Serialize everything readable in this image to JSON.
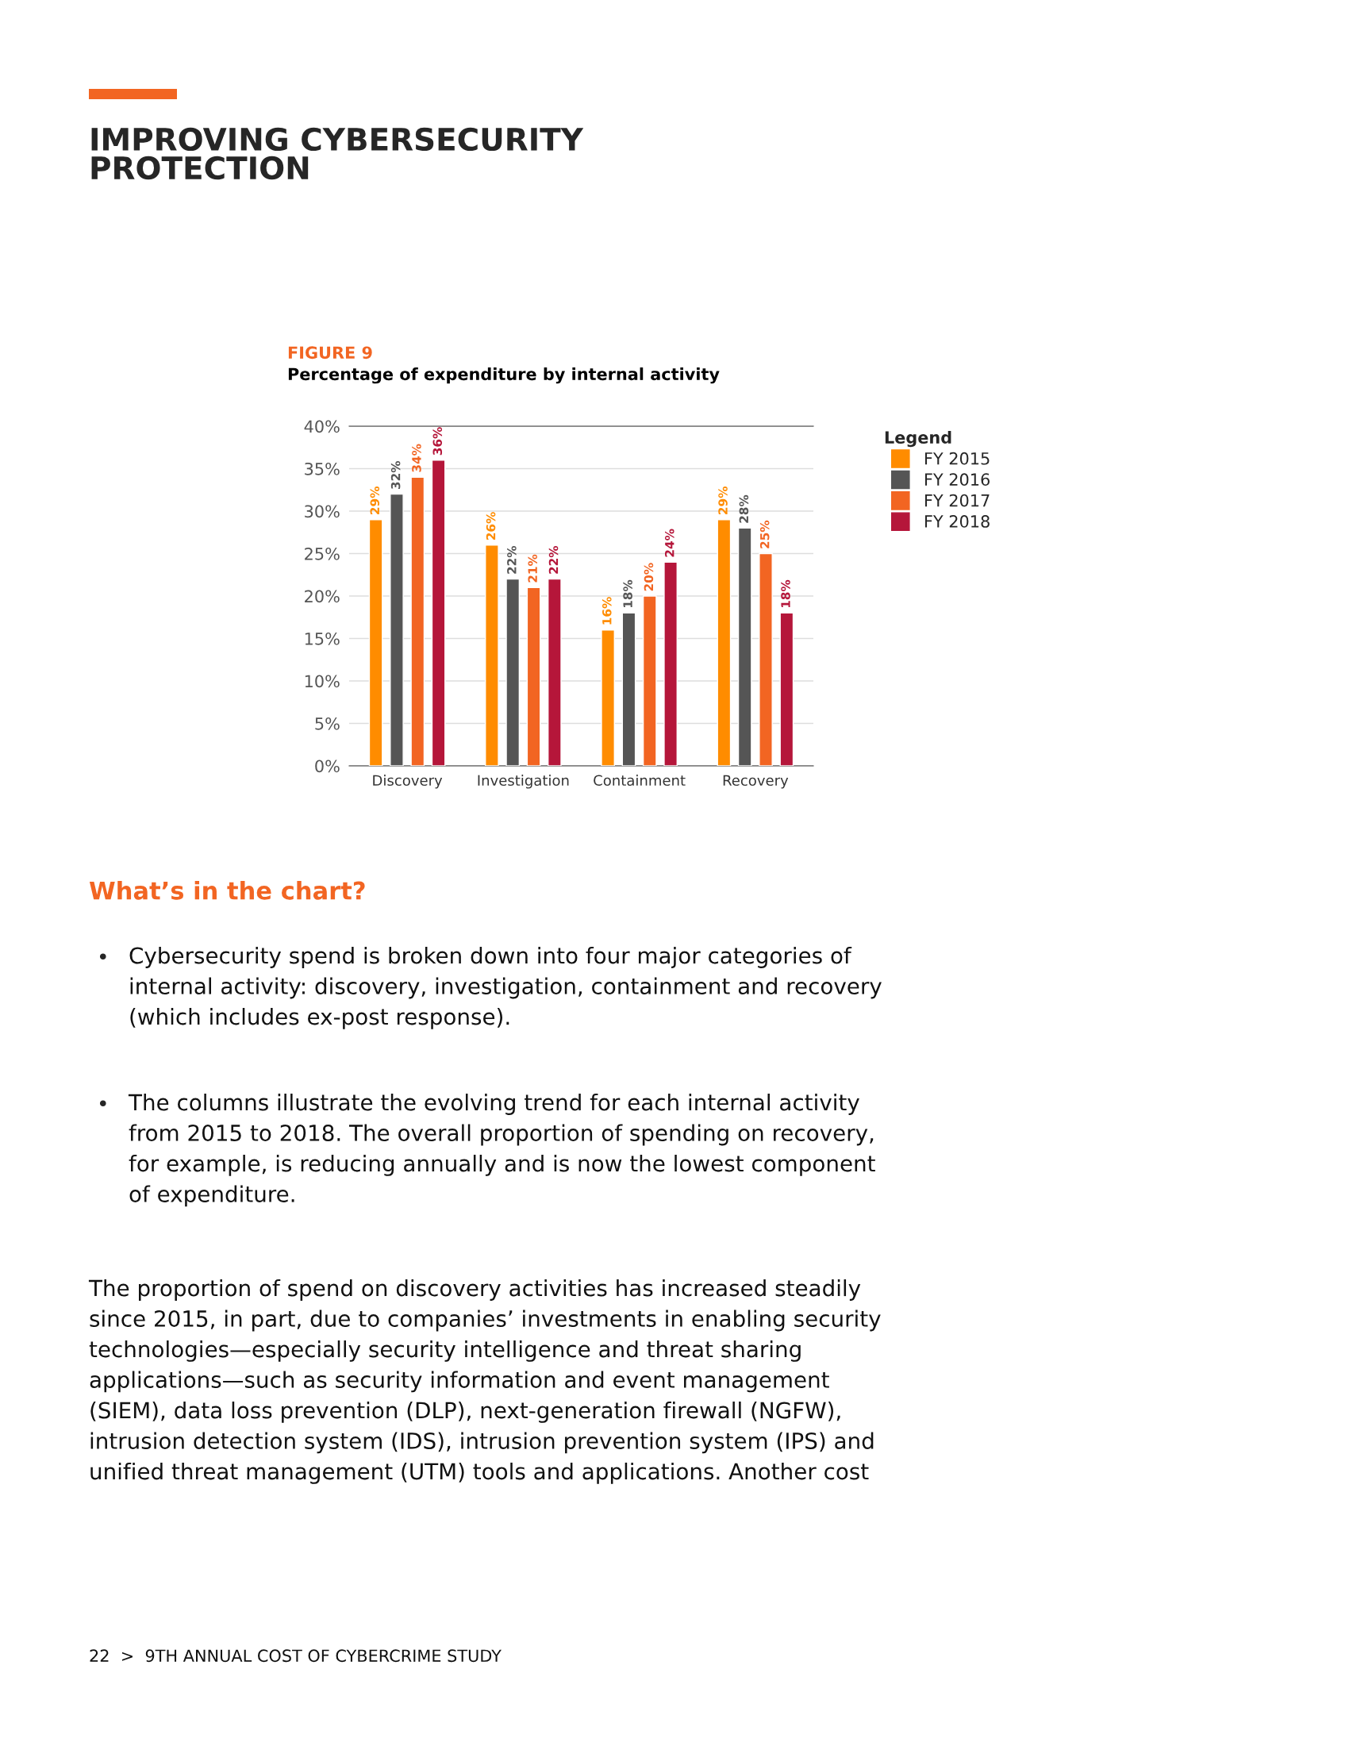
{
  "chart_data": {
    "type": "bar",
    "title": "Percentage of expenditure by internal activity",
    "subtitle": "FIGURE 9",
    "legend_title": "Legend",
    "categories": [
      "Discovery",
      "Investigation",
      "Containment",
      "Recovery"
    ],
    "series": [
      {
        "name": "FY 2015",
        "color": "#ff8c00",
        "values": [
          29,
          26,
          16,
          29
        ],
        "value_labels": [
          "29%",
          "26%",
          "16%",
          "29%"
        ]
      },
      {
        "name": "FY 2016",
        "color": "#555555",
        "values": [
          32,
          22,
          18,
          28
        ],
        "value_labels": [
          "32%",
          "22%",
          "18%",
          "28%"
        ]
      },
      {
        "name": "FY 2017",
        "color": "#f26522",
        "values": [
          34,
          21,
          20,
          25
        ],
        "value_labels": [
          "34%",
          "21%",
          "20%",
          "25%"
        ]
      },
      {
        "name": "FY 2018",
        "color": "#b5163a",
        "values": [
          36,
          22,
          24,
          18
        ],
        "value_labels": [
          "36%",
          "22%",
          "24%",
          "18%"
        ]
      }
    ],
    "ylim": [
      0,
      40
    ],
    "yticks": [
      {
        "value": 0,
        "label": "0%"
      },
      {
        "value": 5,
        "label": "5%"
      },
      {
        "value": 10,
        "label": "10%"
      },
      {
        "value": 15,
        "label": "15%"
      },
      {
        "value": 20,
        "label": "20%"
      },
      {
        "value": 25,
        "label": "25%"
      },
      {
        "value": 30,
        "label": "30%"
      },
      {
        "value": 35,
        "label": "35%"
      },
      {
        "value": 40,
        "label": "40%"
      }
    ],
    "grid": "y",
    "legend": "right",
    "annotations": [
      "IMPROVING CYBERSECURITY\nPROTECTION",
      "What’s in the chart?",
      "•",
      "Cybersecurity spend is broken down into four major categories of\ninternal activity: discovery, investigation, containment and recovery\n(which includes ex-post response).",
      "•",
      "The columns illustrate the evolving trend for each internal activity\nfrom 2015 to 2018. The overall proportion of spending on recovery,\nfor example, is reducing annually and is now the lowest component\nof expenditure.",
      "The proportion of spend on discovery activities has increased steadily\nsince 2015, in part, due to companies’ investments in enabling security\ntechnologies—especially security intelligence and threat sharing\napplications—such as security information and event management\n(SIEM), data loss prevention (DLP), next-generation firewall (NGFW),\nintrusion detection system (IDS), intrusion prevention system (IPS) and\nunified threat management (UTM) tools and applications. Another cost",
      "22  >  9TH ANNUAL COST OF CYBERCRIME STUDY"
    ]
  }
}
